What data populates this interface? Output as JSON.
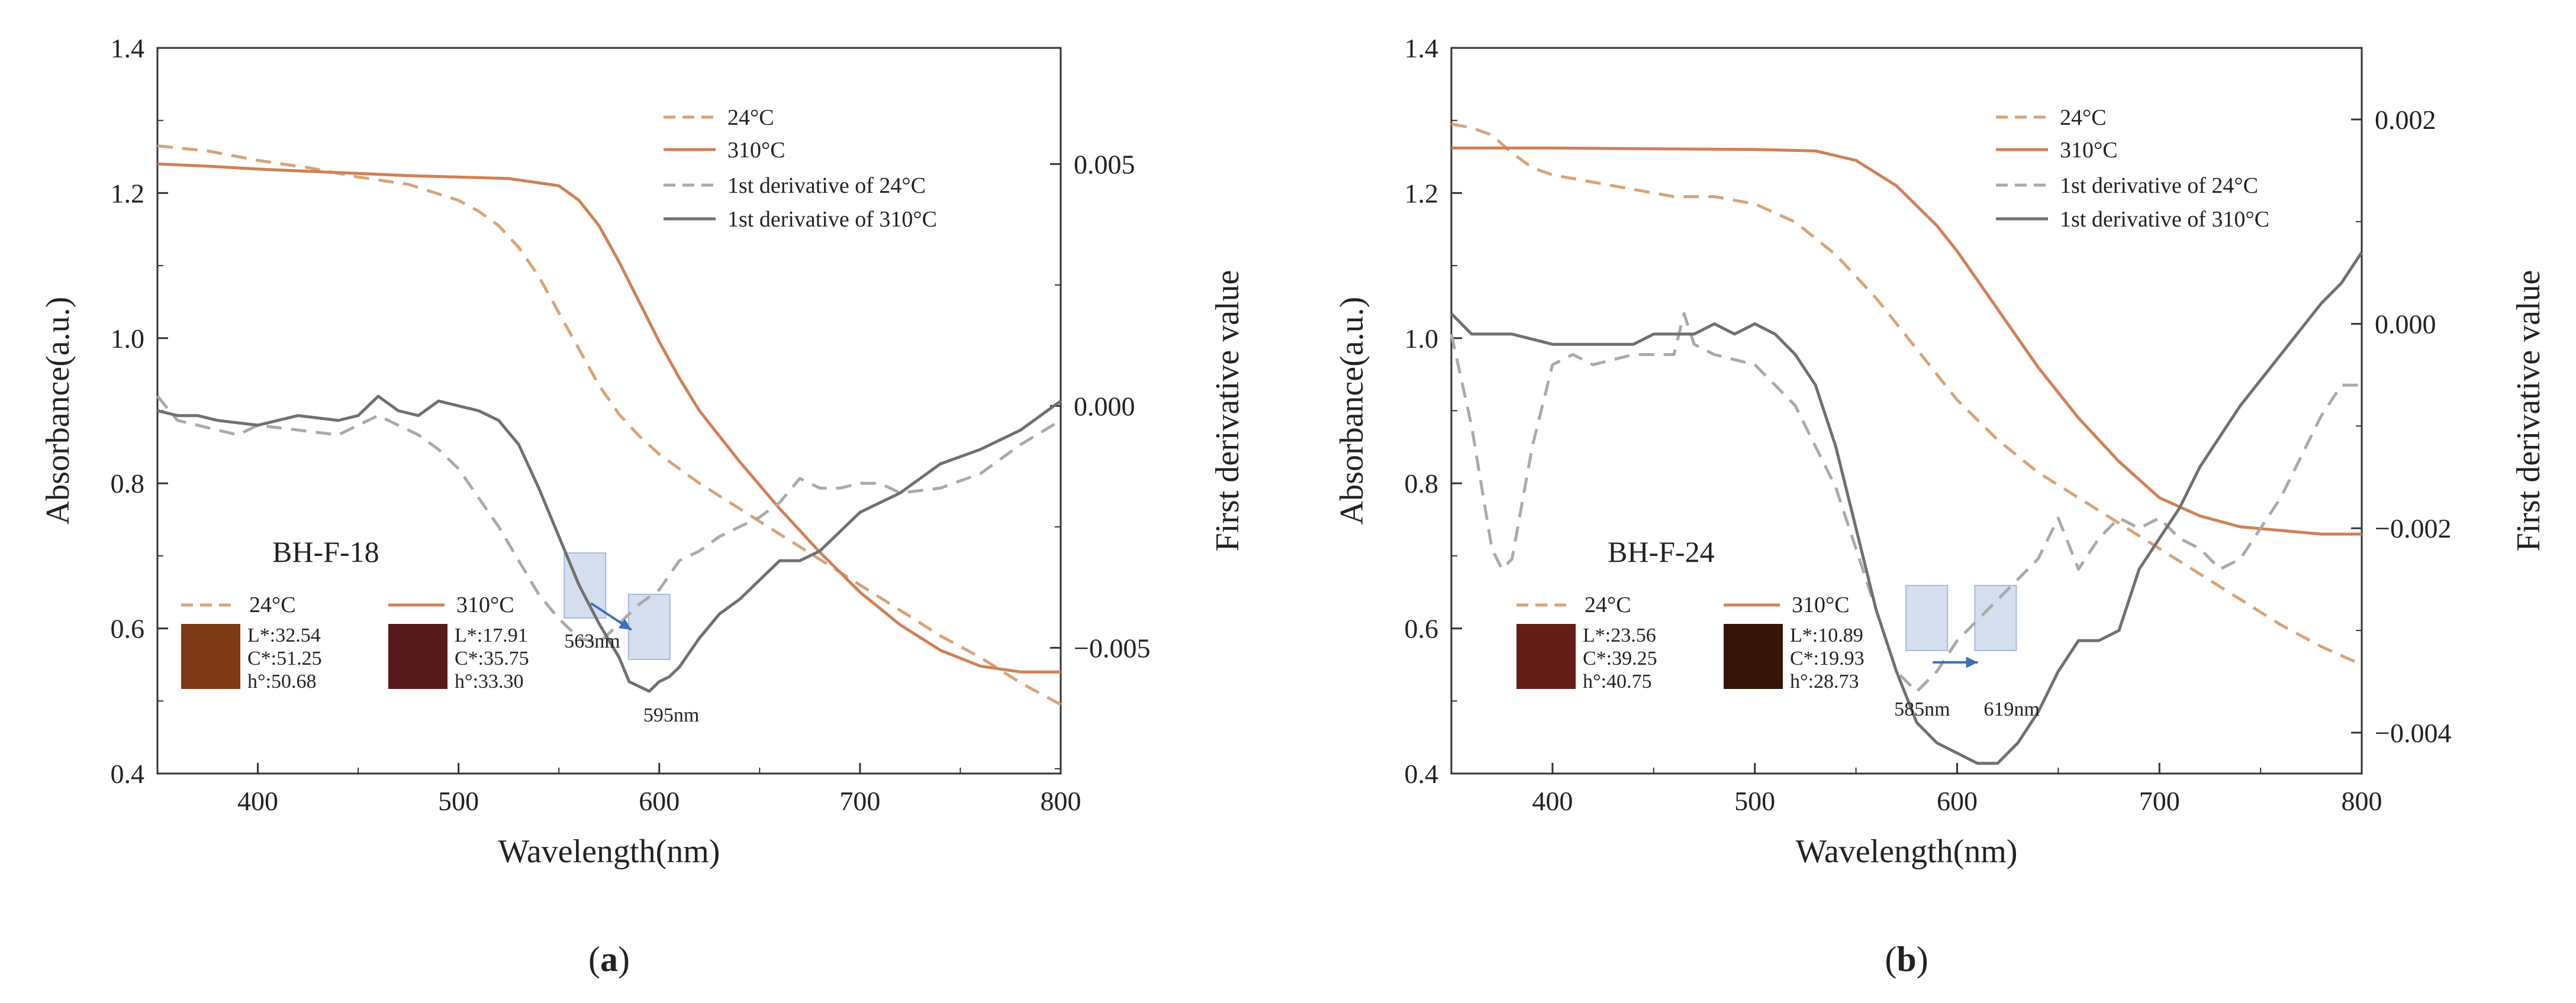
{
  "chart_data": [
    {
      "panel_label": "(a)",
      "panel_letter": "a",
      "type": "line",
      "title": "BH-F-18",
      "xlabel": "Wavelength(nm)",
      "ylabel": "Absorbance(a.u.)",
      "y2label": "First derivative value",
      "xlim": [
        350,
        800
      ],
      "ylim": [
        0.4,
        1.4
      ],
      "y2lim": [
        -0.0076,
        0.0074
      ],
      "xticks": [
        400,
        500,
        600,
        700,
        800
      ],
      "yticks": [
        0.4,
        0.6,
        0.8,
        1.0,
        1.2,
        1.4
      ],
      "ytick_labels": [
        "0.4",
        "0.6",
        "0.8",
        "1.0",
        "1.2",
        "1.4"
      ],
      "y2ticks": [
        0.005,
        0.0,
        -0.005
      ],
      "y2tick_labels": [
        "0.005",
        "0.000",
        "−0.005"
      ],
      "legend": [
        "24°C",
        "310°C",
        "1st derivative of 24°C",
        "1st derivative of 310°C"
      ],
      "series": [
        {
          "name": "24°C",
          "axis": "left",
          "style": "dashed",
          "color": "#D9A276",
          "x": [
            350,
            375,
            400,
            425,
            450,
            475,
            500,
            510,
            520,
            530,
            540,
            550,
            560,
            570,
            580,
            590,
            600,
            610,
            620,
            640,
            660,
            680,
            700,
            720,
            740,
            760,
            780,
            800
          ],
          "y": [
            1.265,
            1.258,
            1.245,
            1.235,
            1.222,
            1.212,
            1.19,
            1.175,
            1.155,
            1.125,
            1.085,
            1.035,
            0.985,
            0.935,
            0.895,
            0.865,
            0.84,
            0.82,
            0.8,
            0.765,
            0.73,
            0.695,
            0.66,
            0.625,
            0.59,
            0.56,
            0.525,
            0.495
          ]
        },
        {
          "name": "310°C",
          "axis": "left",
          "style": "solid",
          "color": "#D08055",
          "x": [
            350,
            375,
            400,
            425,
            450,
            475,
            500,
            525,
            550,
            560,
            570,
            580,
            590,
            600,
            610,
            620,
            640,
            660,
            680,
            700,
            720,
            740,
            760,
            780,
            800
          ],
          "y": [
            1.24,
            1.237,
            1.233,
            1.23,
            1.227,
            1.224,
            1.222,
            1.22,
            1.21,
            1.19,
            1.155,
            1.105,
            1.05,
            0.995,
            0.945,
            0.9,
            0.83,
            0.765,
            0.705,
            0.65,
            0.605,
            0.57,
            0.548,
            0.54,
            0.54
          ]
        },
        {
          "name": "1st derivative of 24°C",
          "axis": "right",
          "style": "dashed",
          "color": "#AAAAAA",
          "x": [
            350,
            360,
            370,
            380,
            390,
            400,
            420,
            440,
            460,
            470,
            480,
            490,
            500,
            510,
            520,
            530,
            540,
            550,
            560,
            570,
            575,
            580,
            590,
            600,
            610,
            620,
            630,
            640,
            650,
            660,
            670,
            680,
            690,
            700,
            710,
            720,
            740,
            760,
            780,
            800
          ],
          "y": [
            0.0002,
            -0.0003,
            -0.0004,
            -0.0005,
            -0.0006,
            -0.0004,
            -0.0005,
            -0.0006,
            -0.0002,
            -0.0004,
            -0.0006,
            -0.0009,
            -0.0013,
            -0.0019,
            -0.0025,
            -0.0032,
            -0.0039,
            -0.0044,
            -0.0048,
            -0.0049,
            -0.0047,
            -0.0045,
            -0.0041,
            -0.0038,
            -0.0032,
            -0.003,
            -0.0027,
            -0.0025,
            -0.0023,
            -0.002,
            -0.0015,
            -0.0017,
            -0.0017,
            -0.0016,
            -0.0016,
            -0.0018,
            -0.0017,
            -0.0014,
            -0.0008,
            -0.0003
          ]
        },
        {
          "name": "1st derivative of 310°C",
          "axis": "right",
          "style": "solid",
          "color": "#707070",
          "x": [
            350,
            360,
            370,
            380,
            400,
            420,
            440,
            450,
            460,
            470,
            480,
            490,
            500,
            510,
            520,
            530,
            540,
            550,
            560,
            570,
            580,
            585,
            590,
            595,
            600,
            605,
            610,
            620,
            630,
            640,
            650,
            660,
            670,
            680,
            690,
            700,
            720,
            740,
            760,
            780,
            800
          ],
          "y": [
            -0.0001,
            -0.0002,
            -0.0002,
            -0.0003,
            -0.0004,
            -0.0002,
            -0.0003,
            -0.0002,
            0.0002,
            -0.0001,
            -0.0002,
            0.0001,
            0.0,
            -0.0001,
            -0.0003,
            -0.0008,
            -0.0017,
            -0.0027,
            -0.0037,
            -0.0045,
            -0.0052,
            -0.0057,
            -0.0058,
            -0.0059,
            -0.0057,
            -0.0056,
            -0.0054,
            -0.0048,
            -0.0043,
            -0.004,
            -0.0036,
            -0.0032,
            -0.0032,
            -0.003,
            -0.0026,
            -0.0022,
            -0.0018,
            -0.0012,
            -0.0009,
            -0.0005,
            0.0001
          ]
        }
      ],
      "annotations": {
        "peak1": "563nm",
        "peak2": "595nm",
        "peak1_x": 563,
        "peak2_x": 595
      },
      "colors": {
        "legend_24": "24°C",
        "legend_310": "310°C",
        "swatch_24": "#7E3A16",
        "swatch_310": "#561A1C",
        "values_24": [
          "L*:32.54",
          "C*:51.25",
          "h°:50.68"
        ],
        "values_310": [
          "L*:17.91",
          "C*:35.75",
          "h°:33.30"
        ]
      }
    },
    {
      "panel_label": "(b)",
      "panel_letter": "b",
      "type": "line",
      "title": "BH-F-24",
      "xlabel": "Wavelength(nm)",
      "ylabel": "Absorbance(a.u.)",
      "y2label": "First derivative value",
      "xlim": [
        350,
        800
      ],
      "ylim": [
        0.4,
        1.4
      ],
      "y2lim": [
        -0.0044,
        0.0027
      ],
      "xticks": [
        400,
        500,
        600,
        700,
        800
      ],
      "yticks": [
        0.4,
        0.6,
        0.8,
        1.0,
        1.2,
        1.4
      ],
      "ytick_labels": [
        "0.4",
        "0.6",
        "0.8",
        "1.0",
        "1.2",
        "1.4"
      ],
      "y2ticks": [
        0.002,
        0.0,
        -0.002,
        -0.004
      ],
      "y2tick_labels": [
        "0.002",
        "0.000",
        "−0.002",
        "−0.004"
      ],
      "legend": [
        "24°C",
        "310°C",
        "1st derivative of 24°C",
        "1st derivative of 310°C"
      ],
      "series": [
        {
          "name": "24°C",
          "axis": "left",
          "style": "dashed",
          "color": "#D9A276",
          "x": [
            350,
            360,
            370,
            380,
            390,
            400,
            420,
            440,
            460,
            480,
            500,
            520,
            540,
            560,
            580,
            600,
            620,
            640,
            660,
            680,
            700,
            720,
            740,
            760,
            780,
            800
          ],
          "y": [
            1.295,
            1.29,
            1.28,
            1.255,
            1.235,
            1.225,
            1.215,
            1.205,
            1.195,
            1.195,
            1.185,
            1.16,
            1.115,
            1.055,
            0.985,
            0.915,
            0.86,
            0.815,
            0.78,
            0.745,
            0.71,
            0.675,
            0.64,
            0.605,
            0.575,
            0.55
          ]
        },
        {
          "name": "310°C",
          "axis": "left",
          "style": "solid",
          "color": "#D08055",
          "x": [
            350,
            400,
            450,
            500,
            530,
            550,
            570,
            590,
            600,
            610,
            620,
            640,
            660,
            680,
            700,
            720,
            740,
            760,
            780,
            800
          ],
          "y": [
            1.262,
            1.262,
            1.261,
            1.26,
            1.258,
            1.245,
            1.21,
            1.155,
            1.12,
            1.08,
            1.04,
            0.96,
            0.89,
            0.83,
            0.78,
            0.755,
            0.74,
            0.735,
            0.73,
            0.73
          ]
        },
        {
          "name": "1st derivative of 24°C",
          "axis": "right",
          "style": "dashed",
          "color": "#AAAAAA",
          "x": [
            350,
            360,
            370,
            375,
            380,
            390,
            400,
            410,
            420,
            440,
            460,
            465,
            470,
            480,
            500,
            520,
            540,
            560,
            570,
            580,
            590,
            600,
            610,
            620,
            630,
            640,
            650,
            660,
            670,
            680,
            690,
            700,
            710,
            720,
            730,
            740,
            760,
            780,
            790,
            800
          ],
          "y": [
            -0.0001,
            -0.001,
            -0.0022,
            -0.0024,
            -0.0023,
            -0.0012,
            -0.0004,
            -0.0003,
            -0.0004,
            -0.0003,
            -0.0003,
            0.0001,
            -0.0002,
            -0.0003,
            -0.0004,
            -0.0008,
            -0.0016,
            -0.0028,
            -0.0034,
            -0.0036,
            -0.0034,
            -0.0031,
            -0.0029,
            -0.0027,
            -0.0025,
            -0.0023,
            -0.0019,
            -0.0024,
            -0.0021,
            -0.0019,
            -0.002,
            -0.0019,
            -0.0021,
            -0.0022,
            -0.0024,
            -0.0023,
            -0.0017,
            -0.0009,
            -0.0006,
            -0.0006
          ]
        },
        {
          "name": "1st derivative of 310°C",
          "axis": "right",
          "style": "solid",
          "color": "#707070",
          "x": [
            350,
            360,
            380,
            400,
            420,
            440,
            450,
            460,
            470,
            480,
            490,
            500,
            510,
            520,
            530,
            540,
            550,
            560,
            570,
            580,
            590,
            600,
            610,
            620,
            630,
            640,
            650,
            660,
            670,
            680,
            690,
            700,
            710,
            720,
            740,
            760,
            780,
            790,
            800
          ],
          "y": [
            0.0001,
            -0.0001,
            -0.0001,
            -0.0002,
            -0.0002,
            -0.0002,
            -0.0001,
            -0.0001,
            -0.0001,
            0.0,
            -0.0001,
            0.0,
            -0.0001,
            -0.0003,
            -0.0006,
            -0.0012,
            -0.002,
            -0.0028,
            -0.0034,
            -0.0039,
            -0.0041,
            -0.0042,
            -0.0043,
            -0.0043,
            -0.0041,
            -0.0038,
            -0.0034,
            -0.0031,
            -0.0031,
            -0.003,
            -0.0024,
            -0.0021,
            -0.0018,
            -0.0014,
            -0.0008,
            -0.0003,
            0.0002,
            0.0004,
            0.0007
          ]
        }
      ],
      "annotations": {
        "peak1": "585nm",
        "peak2": "619nm",
        "peak1_x": 585,
        "peak2_x": 619
      },
      "colors": {
        "legend_24": "24°C",
        "legend_310": "310°C",
        "swatch_24": "#651E17",
        "swatch_310": "#351508",
        "values_24": [
          "L*:23.56",
          "C*:39.25",
          "h°:40.75"
        ],
        "values_310": [
          "L*:10.89",
          "C*:19.93",
          "h°:28.73"
        ]
      }
    }
  ]
}
